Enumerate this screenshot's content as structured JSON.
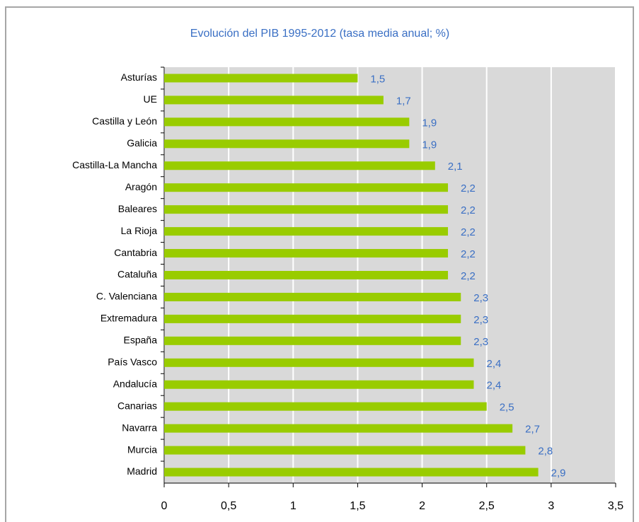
{
  "chart_data": {
    "type": "barh",
    "title": "Evolución del PIB 1995-2012 (tasa media anual; %)",
    "categories": [
      "Asturías",
      "UE",
      "Castilla y León",
      "Galicia",
      "Castilla-La Mancha",
      "Aragón",
      "Baleares",
      "La Rioja",
      "Cantabria",
      "Cataluña",
      "C. Valenciana",
      "Extremadura",
      "España",
      "País Vasco",
      "Andalucía",
      "Canarias",
      "Navarra",
      "Murcia",
      "Madrid"
    ],
    "values": [
      1.5,
      1.7,
      1.9,
      1.9,
      2.1,
      2.2,
      2.2,
      2.2,
      2.2,
      2.2,
      2.3,
      2.3,
      2.3,
      2.4,
      2.4,
      2.5,
      2.7,
      2.8,
      2.9
    ],
    "value_labels": [
      "1,5",
      "1,7",
      "1,9",
      "1,9",
      "2,1",
      "2,2",
      "2,2",
      "2,2",
      "2,2",
      "2,2",
      "2,3",
      "2,3",
      "2,3",
      "2,4",
      "2,4",
      "2,5",
      "2,7",
      "2,8",
      "2,9"
    ],
    "color": "#99cc00",
    "xlim": [
      0,
      3.5
    ],
    "xticks": [
      0,
      {
        "value": 0.5,
        "label": "0,5"
      },
      1,
      {
        "value": 1.5,
        "label": "1,5"
      },
      2,
      {
        "value": 2.5,
        "label": "2,5"
      },
      3,
      {
        "value": 3.5,
        "label": "3,5"
      }
    ],
    "grid": true
  }
}
